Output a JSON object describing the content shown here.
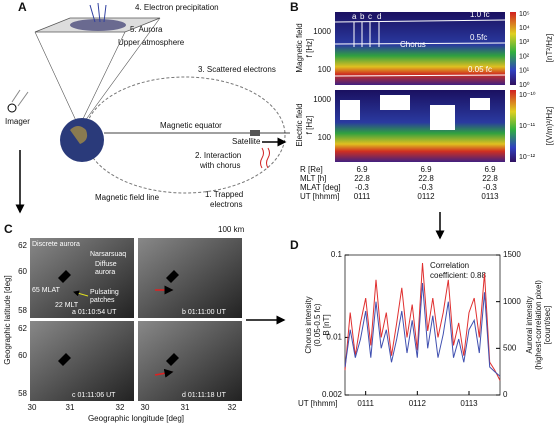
{
  "panel_a": {
    "label": "A",
    "precipitation": "4. Electron precipitation",
    "aurora": "5. Aurora",
    "upper_atmosphere": "Upper atmosphere",
    "scattered": "3. Scattered electrons",
    "imager": "Imager",
    "magnetic_equator": "Magnetic equator",
    "satellite": "Satellite",
    "interaction": [
      "2. Interaction",
      "with chorus"
    ],
    "field_line": "Magnetic field line",
    "trapped": [
      "1. Trapped",
      "electrons"
    ]
  },
  "panel_b": {
    "label": "B",
    "mag_axis": [
      "Magnetic field",
      "f [Hz]"
    ],
    "elec_axis": [
      "Electric field",
      "f [Hz]"
    ],
    "mag_ticks": [
      1000,
      100
    ],
    "elec_ticks": [
      1000,
      100
    ],
    "event_letters": [
      "a",
      "b",
      "c",
      "d"
    ],
    "fc_labels": [
      "1.0 fc",
      "0.5fc",
      "0.05 fc"
    ],
    "chorus": "Chorus",
    "mag_colorbar": [
      "10⁵",
      "10⁴",
      "10³",
      "10²",
      "10¹",
      "10⁰"
    ],
    "mag_unit": "[nT²/Hz]",
    "elec_colorbar": [
      "10⁻¹⁰",
      "10⁻¹¹",
      "10⁻¹²"
    ],
    "elec_unit": "[(V/m)²/Hz]",
    "rows": [
      {
        "name": "R [Re]",
        "values": [
          "6.9",
          "6.9",
          "6.9"
        ]
      },
      {
        "name": "MLT [h]",
        "values": [
          "22.8",
          "22.8",
          "22.8"
        ]
      },
      {
        "name": "MLAT [deg]",
        "values": [
          "-0.3",
          "-0.3",
          "-0.3"
        ]
      },
      {
        "name": "UT [hhmm]",
        "values": [
          "0111",
          "0112",
          "0113"
        ]
      }
    ]
  },
  "panel_c": {
    "label": "C",
    "scale": "100 km",
    "discrete": "Discrete aurora",
    "station": "Narsarsuaq",
    "diffuse": [
      "Diffuse",
      "aurora"
    ],
    "mlat": "65 MLAT",
    "pulsating": [
      "Pulsating",
      "patches"
    ],
    "mlt": "22 MLT",
    "times": [
      "a 01:10:54 UT",
      "b 01:11:00 UT",
      "c 01:11:06 UT",
      "d 01:11:18 UT"
    ],
    "y_label": "Geographic latitude [deg]",
    "x_label": "Geographic longitude [deg]",
    "lat_ticks_upper": [
      62,
      60,
      58
    ],
    "lat_ticks_lower": [
      62,
      60,
      58
    ],
    "lon_ticks_left": [
      30,
      31,
      32
    ],
    "lon_ticks_right": [
      30,
      31,
      32
    ]
  },
  "panel_d": {
    "label": "D",
    "chart_data": {
      "type": "line",
      "y_label": [
        "Chorus intensity",
        "(0.05-0.5 fc)",
        "B [nT]"
      ],
      "y2_label": [
        "Auroral intensity",
        "(highest-correlation pixel)",
        "[count/sec]"
      ],
      "annotation": [
        "Correlation",
        "coefficient: 0.88"
      ],
      "x_label": "UT [hhmm]",
      "x": [
        70.6,
        70.7,
        70.8,
        70.9,
        71.0,
        71.1,
        71.2,
        71.3,
        71.4,
        71.5,
        71.6,
        71.7,
        71.8,
        71.9,
        72.0,
        72.1,
        72.2,
        72.3,
        72.4,
        72.5,
        72.6,
        72.7,
        72.8,
        72.9,
        73.0,
        73.1,
        73.2,
        73.3,
        73.4,
        73.5,
        73.6
      ],
      "xlim": [
        70.6,
        73.6
      ],
      "xticks": [
        {
          "value": 71,
          "label": "0111"
        },
        {
          "value": 72,
          "label": "0112"
        },
        {
          "value": 73,
          "label": "0113"
        }
      ],
      "ylog": true,
      "ylim": [
        0.002,
        0.1
      ],
      "yticks": [
        0.1,
        0.01,
        0.002
      ],
      "y2lim": [
        0,
        1500
      ],
      "y2ticks": [
        1500,
        1000,
        500,
        0
      ],
      "series": [
        {
          "name": "Chorus intensity",
          "color": "#e03030",
          "values": [
            0.004,
            0.02,
            0.006,
            0.015,
            0.03,
            0.008,
            0.05,
            0.01,
            0.02,
            0.006,
            0.015,
            0.04,
            0.01,
            0.025,
            0.007,
            0.08,
            0.012,
            0.03,
            0.01,
            0.02,
            0.05,
            0.008,
            0.015,
            0.006,
            0.02,
            0.03,
            0.01,
            0.06,
            0.005,
            0.004,
            0.003
          ]
        },
        {
          "name": "Auroral intensity",
          "color": "#4050b0",
          "axis": "y2",
          "values": [
            300,
            700,
            400,
            600,
            900,
            400,
            1000,
            500,
            700,
            350,
            600,
            900,
            450,
            800,
            400,
            1200,
            500,
            850,
            400,
            650,
            1000,
            400,
            600,
            350,
            700,
            800,
            450,
            1100,
            300,
            250,
            200
          ]
        }
      ]
    }
  }
}
